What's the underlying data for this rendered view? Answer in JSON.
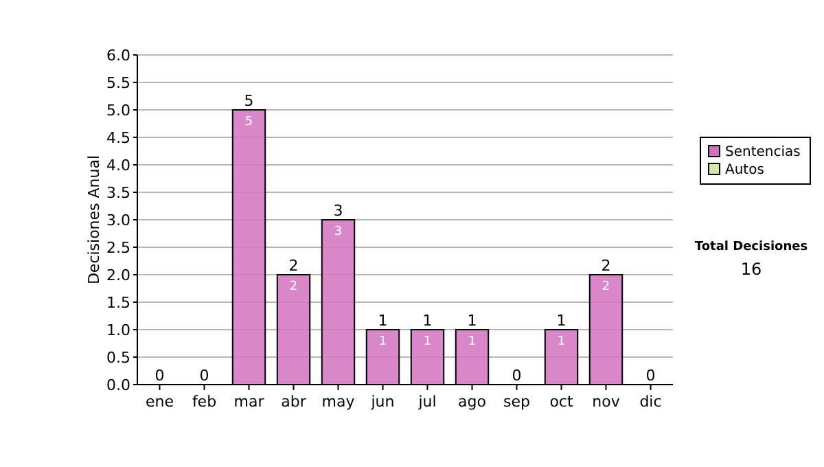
{
  "chart_data": {
    "type": "bar",
    "stacked": true,
    "ylabel": "Decisiones Anual",
    "categories": [
      "ene",
      "feb",
      "mar",
      "abr",
      "may",
      "jun",
      "jul",
      "ago",
      "sep",
      "oct",
      "nov",
      "dic"
    ],
    "series": [
      {
        "name": "Sentencias",
        "color": "#d272be",
        "values": [
          0,
          0,
          5,
          2,
          3,
          1,
          1,
          1,
          0,
          1,
          2,
          0
        ],
        "value_labels": [
          null,
          null,
          "5",
          "2",
          "3",
          "1",
          "1",
          "1",
          null,
          "1",
          "2",
          null
        ]
      },
      {
        "name": "Autos",
        "color": "#d4eca0",
        "values": [
          0,
          0,
          0,
          0,
          0,
          0,
          0,
          0,
          0,
          0,
          0,
          0
        ]
      }
    ],
    "totals": [
      "0",
      "0",
      "5",
      "2",
      "3",
      "1",
      "1",
      "1",
      "0",
      "1",
      "2",
      "0"
    ],
    "ylim": [
      0,
      6
    ],
    "yticks": [
      {
        "value": 0,
        "label": "0.0"
      },
      {
        "value": 0.5,
        "label": "0.5"
      },
      {
        "value": 1,
        "label": "1.0"
      },
      {
        "value": 1.5,
        "label": "1.5"
      },
      {
        "value": 2,
        "label": "2.0"
      },
      {
        "value": 2.5,
        "label": "2.5"
      },
      {
        "value": 3,
        "label": "3.0"
      },
      {
        "value": 3.5,
        "label": "3.5"
      },
      {
        "value": 4,
        "label": "4.0"
      },
      {
        "value": 4.5,
        "label": "4.5"
      },
      {
        "value": 5,
        "label": "5.0"
      },
      {
        "value": 5.5,
        "label": "5.5"
      },
      {
        "value": 6,
        "label": "6.0"
      }
    ],
    "grid": "y",
    "legend": "right",
    "annotations": [
      "Total Decisiones",
      "16"
    ]
  }
}
